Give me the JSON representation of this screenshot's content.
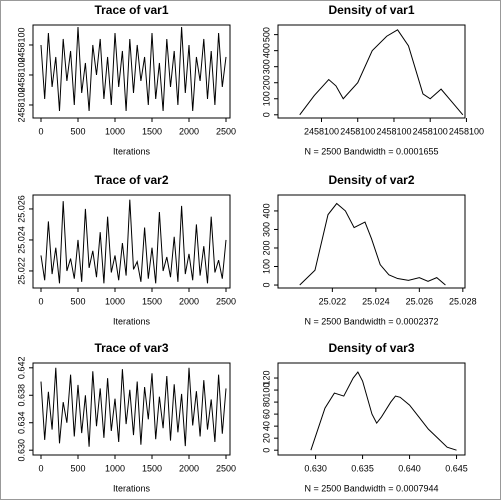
{
  "chart_data": [
    {
      "type": "line",
      "title": "Trace of var1",
      "xlabel": "Iterations",
      "color": "#000000",
      "x": [
        0,
        50,
        100,
        150,
        200,
        250,
        300,
        350,
        400,
        450,
        500,
        550,
        600,
        650,
        700,
        750,
        800,
        850,
        900,
        950,
        1000,
        1050,
        1100,
        1150,
        1200,
        1250,
        1300,
        1350,
        1400,
        1450,
        1500,
        1550,
        1600,
        1650,
        1700,
        1750,
        1800,
        1850,
        1900,
        1950,
        2000,
        2050,
        2100,
        2150,
        2200,
        2250,
        2300,
        2350,
        2400,
        2450,
        2500
      ],
      "values": [
        2458100.0005,
        2458099.9996,
        2458100.0007,
        2458099.9998,
        2458100.0003,
        2458099.9994,
        2458100.0006,
        2458099.9999,
        2458100.0004,
        2458099.9995,
        2458100.0008,
        2458099.9997,
        2458100.0002,
        2458099.9994,
        2458100.0005,
        2458100,
        2458100.0006,
        2458099.9996,
        2458100.0003,
        2458099.9995,
        2458100.0007,
        2458099.9998,
        2458100.0004,
        2458099.9994,
        2458100.0006,
        2458099.9997,
        2458100.0005,
        2458099.9999,
        2458100.0003,
        2458099.9995,
        2458100.0007,
        2458099.9996,
        2458100.0002,
        2458099.9994,
        2458100.0006,
        2458099.9998,
        2458100.0004,
        2458099.9995,
        2458100.0008,
        2458099.9997,
        2458100.0005,
        2458099.9994,
        2458100.0003,
        2458099.9999,
        2458100.0006,
        2458099.9996,
        2458100.0004,
        2458099.9995,
        2458100.0007,
        2458099.9998,
        2458100.0003
      ],
      "xlim": [
        -108,
        2554
      ],
      "xticks": [
        0,
        500,
        1000,
        1500,
        2000,
        2500
      ],
      "ylim": [
        2458099.999283,
        2458100.000833
      ],
      "yticks": [
        {
          "value": 2458099.9995,
          "label": "2458100"
        },
        {
          "value": 2458100,
          "label": "2458100"
        },
        {
          "value": 2458100.0005,
          "label": "2458100"
        }
      ]
    },
    {
      "type": "line",
      "title": "Density of var1",
      "xlabel": "N = 2500   Bandwidth = 0.0001655",
      "color": "#000000",
      "x": [
        2458099.9987,
        2458099.9989,
        2458099.9991,
        2458099.9992,
        2458099.9993,
        2458099.9995,
        2458099.9997,
        2458099.9999,
        2458100.00005,
        2458100.0002,
        2458100.0004,
        2458100.0005,
        2458100.00065,
        2458100.0008,
        2458100.00095
      ],
      "values": [
        0,
        120,
        220,
        180,
        100,
        200,
        400,
        490,
        530,
        430,
        130,
        100,
        160,
        80,
        0
      ],
      "xlim": [
        2458099.9984,
        2458100.00098
      ],
      "xticks": [
        {
          "value": 2458099.999,
          "label": "2458100"
        },
        {
          "value": 2458099.9995,
          "label": "2458100"
        },
        {
          "value": 2458100,
          "label": "2458100"
        },
        {
          "value": 2458100.0005,
          "label": "2458100"
        },
        {
          "value": 2458100.001,
          "label": "2458100"
        }
      ],
      "ylim": [
        -20,
        560
      ],
      "yticks": [
        0,
        100,
        200,
        300,
        400,
        500
      ]
    },
    {
      "type": "line",
      "title": "Trace of var2",
      "xlabel": "Iterations",
      "color": "#000000",
      "x": [
        0,
        50,
        100,
        150,
        200,
        250,
        300,
        350,
        400,
        450,
        500,
        550,
        600,
        650,
        700,
        750,
        800,
        850,
        900,
        950,
        1000,
        1050,
        1100,
        1150,
        1200,
        1250,
        1300,
        1350,
        1400,
        1450,
        1500,
        1550,
        1600,
        1650,
        1700,
        1750,
        1800,
        1850,
        1900,
        1950,
        2000,
        2050,
        2100,
        2150,
        2200,
        2250,
        2300,
        2350,
        2400,
        2450,
        2500
      ],
      "values": [
        25.023,
        25.0214,
        25.0252,
        25.0218,
        25.0235,
        25.0212,
        25.0265,
        25.022,
        25.0228,
        25.0215,
        25.024,
        25.0213,
        25.026,
        25.0222,
        25.0233,
        25.0216,
        25.0245,
        25.0212,
        25.0255,
        25.0219,
        25.023,
        25.0214,
        25.0238,
        25.0217,
        25.0266,
        25.0221,
        25.0226,
        25.0213,
        25.0248,
        25.0215,
        25.0235,
        25.0212,
        25.0258,
        25.022,
        25.0229,
        25.0216,
        25.0242,
        25.0213,
        25.0262,
        25.0218,
        25.0231,
        25.0214,
        25.025,
        25.0217,
        25.0236,
        25.0212,
        25.0255,
        25.0219,
        25.0227,
        25.0215,
        25.024
      ],
      "xlim": [
        -108,
        2554
      ],
      "xticks": [
        0,
        500,
        1000,
        1500,
        2000,
        2500
      ],
      "ylim": [
        25.0209,
        25.0269
      ],
      "yticks": [
        {
          "value": 25.022,
          "label": "25.022"
        },
        {
          "value": 25.024,
          "label": "25.024"
        },
        {
          "value": 25.026,
          "label": "25.026"
        }
      ]
    },
    {
      "type": "line",
      "title": "Density of var2",
      "xlabel": "N = 2500   Bandwidth = 0.0002372",
      "color": "#000000",
      "x": [
        25.0205,
        25.0212,
        25.0218,
        25.0222,
        25.0226,
        25.023,
        25.0235,
        25.0238,
        25.0242,
        25.0246,
        25.025,
        25.0255,
        25.026,
        25.0264,
        25.0268,
        25.0272
      ],
      "values": [
        0,
        80,
        380,
        440,
        400,
        310,
        340,
        250,
        110,
        55,
        35,
        25,
        40,
        20,
        40,
        0
      ],
      "xlim": [
        25.0195,
        25.0281
      ],
      "xticks": [
        {
          "value": 25.022,
          "label": "25.022"
        },
        {
          "value": 25.024,
          "label": "25.024"
        },
        {
          "value": 25.026,
          "label": "25.026"
        },
        {
          "value": 25.028,
          "label": "25.028"
        }
      ],
      "ylim": [
        -16,
        486
      ],
      "yticks": [
        0,
        100,
        200,
        300,
        400
      ]
    },
    {
      "type": "line",
      "title": "Trace of var3",
      "xlabel": "Iterations",
      "color": "#000000",
      "x": [
        0,
        50,
        100,
        150,
        200,
        250,
        300,
        350,
        400,
        450,
        500,
        550,
        600,
        650,
        700,
        750,
        800,
        850,
        900,
        950,
        1000,
        1050,
        1100,
        1150,
        1200,
        1250,
        1300,
        1350,
        1400,
        1450,
        1500,
        1550,
        1600,
        1650,
        1700,
        1750,
        1800,
        1850,
        1900,
        1950,
        2000,
        2050,
        2100,
        2150,
        2200,
        2250,
        2300,
        2350,
        2400,
        2450,
        2500
      ],
      "values": [
        0.64,
        0.6315,
        0.6385,
        0.633,
        0.642,
        0.631,
        0.637,
        0.634,
        0.641,
        0.632,
        0.6395,
        0.6325,
        0.638,
        0.6305,
        0.6415,
        0.6335,
        0.639,
        0.6318,
        0.6405,
        0.6328,
        0.6375,
        0.6312,
        0.6418,
        0.6338,
        0.6388,
        0.6322,
        0.64,
        0.6308,
        0.6392,
        0.6345,
        0.6412,
        0.6316,
        0.6378,
        0.6332,
        0.6408,
        0.6314,
        0.6396,
        0.6326,
        0.6382,
        0.6306,
        0.642,
        0.6336,
        0.6386,
        0.632,
        0.6402,
        0.633,
        0.6374,
        0.6312,
        0.641,
        0.6324,
        0.639
      ],
      "xlim": [
        -108,
        2554
      ],
      "xticks": [
        0,
        500,
        1000,
        1500,
        2000,
        2500
      ],
      "ylim": [
        0.6293,
        0.6427
      ],
      "yticks": [
        {
          "value": 0.63,
          "label": "0.630"
        },
        {
          "value": 0.634,
          "label": "0.634"
        },
        {
          "value": 0.638,
          "label": "0.638"
        },
        {
          "value": 0.642,
          "label": "0.642"
        }
      ]
    },
    {
      "type": "line",
      "title": "Density of var3",
      "xlabel": "N = 2500   Bandwidth = 0.0007944",
      "color": "#000000",
      "x": [
        0.6295,
        0.631,
        0.632,
        0.633,
        0.634,
        0.6345,
        0.635,
        0.636,
        0.6365,
        0.637,
        0.638,
        0.6385,
        0.639,
        0.64,
        0.641,
        0.642,
        0.643,
        0.644,
        0.645
      ],
      "values": [
        0,
        70,
        95,
        90,
        120,
        130,
        115,
        60,
        45,
        55,
        80,
        90,
        88,
        75,
        55,
        35,
        20,
        5,
        0
      ],
      "xlim": [
        0.626,
        0.6459
      ],
      "xticks": [
        {
          "value": 0.63,
          "label": "0.630"
        },
        {
          "value": 0.635,
          "label": "0.635"
        },
        {
          "value": 0.64,
          "label": "0.640"
        },
        {
          "value": 0.645,
          "label": "0.645"
        }
      ],
      "ylim": [
        -8,
        145
      ],
      "yticks": [
        0,
        20,
        40,
        60,
        80,
        100,
        120
      ]
    }
  ]
}
